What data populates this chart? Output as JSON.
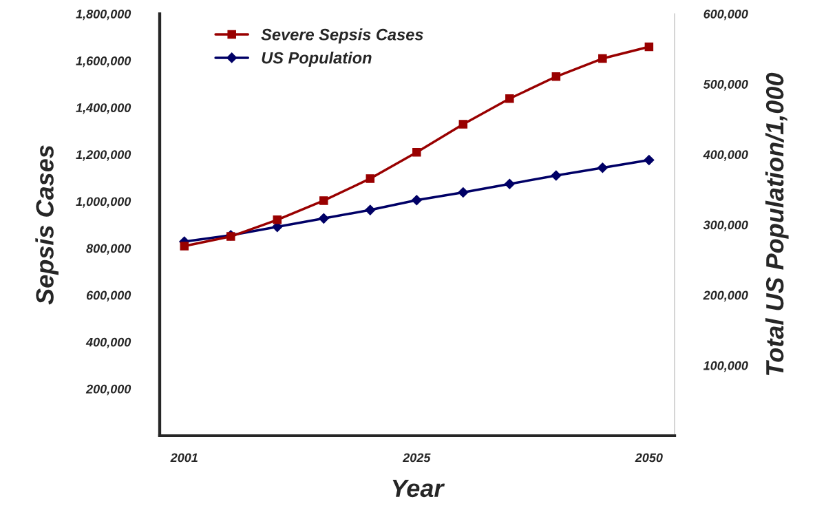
{
  "chart_data": {
    "type": "line",
    "xlabel": "Year",
    "ylabel": "Sepsis Cases",
    "y2label": "Total US Population/1,000",
    "categories": [
      "2001",
      null,
      null,
      null,
      null,
      "2025",
      null,
      null,
      null,
      null,
      "2050"
    ],
    "series": [
      {
        "name": "Severe Sepsis Cases",
        "color": "#990000",
        "marker": "square",
        "values": [
          809000,
          850000,
          921000,
          1003000,
          1097000,
          1209000,
          1329000,
          1438000,
          1532000,
          1609000,
          1659000
        ]
      },
      {
        "name": "US Population",
        "color": "#000066",
        "marker": "diamond",
        "axis": "y2",
        "values": [
          276000,
          285000,
          297000,
          309000,
          321000,
          335000,
          346000,
          358000,
          370000,
          381000,
          392000
        ]
      }
    ],
    "ylim": [
      0,
      1800000
    ],
    "yticks": [
      {
        "value": 0,
        "label": null
      },
      {
        "value": 200000,
        "label": "200,000"
      },
      {
        "value": 400000,
        "label": "400,000"
      },
      {
        "value": 600000,
        "label": "600,000"
      },
      {
        "value": 800000,
        "label": "800,000"
      },
      {
        "value": 1000000,
        "label": "1,000,000"
      },
      {
        "value": 1200000,
        "label": "1,200,000"
      },
      {
        "value": 1400000,
        "label": "1,400,000"
      },
      {
        "value": 1600000,
        "label": "1,600,000"
      },
      {
        "value": 1800000,
        "label": "1,800,000"
      }
    ],
    "y2lim": [
      0,
      600000
    ],
    "y2ticks": [
      {
        "value": 0,
        "label": null
      },
      {
        "value": 100000,
        "label": "100,000"
      },
      {
        "value": 200000,
        "label": "200,000"
      },
      {
        "value": 300000,
        "label": "300,000"
      },
      {
        "value": 400000,
        "label": "400,000"
      },
      {
        "value": 500000,
        "label": "500,000"
      },
      {
        "value": 600000,
        "label": "600,000"
      }
    ],
    "grid": false,
    "legend": "top left"
  }
}
